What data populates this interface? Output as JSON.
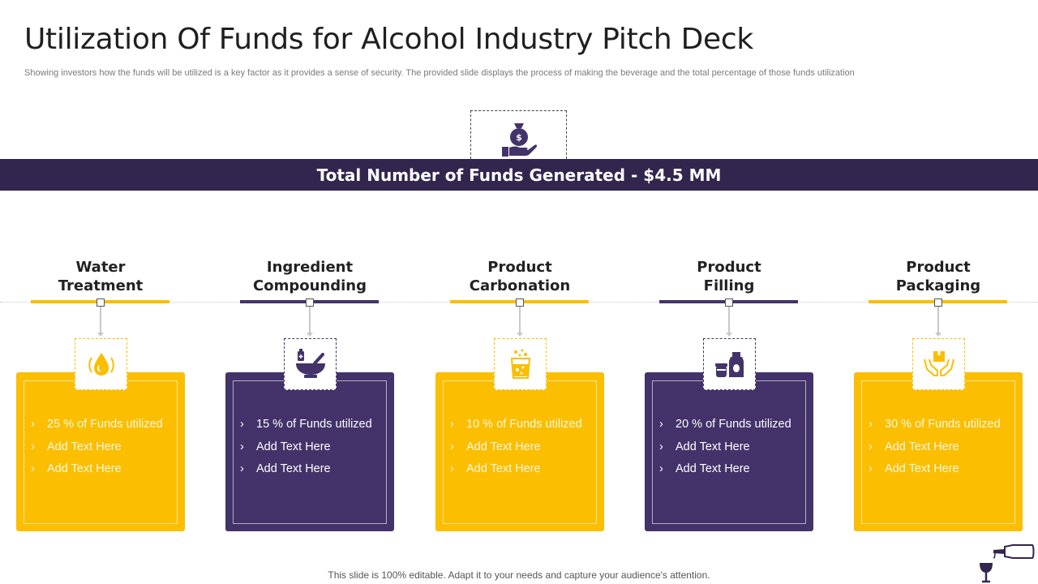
{
  "title": "Utilization Of Funds for Alcohol Industry Pitch Deck",
  "subtitle": "Showing investors how the funds will be utilized is a key factor as it provides a sense of security. The provided slide displays the process of making the beverage and the total percentage of those funds utilization",
  "banner": "Total Number of Funds Generated  - $4.5 MM",
  "colors": {
    "yellow": "#fbbe00",
    "purple": "#43336a",
    "banner": "#32264f"
  },
  "columns": [
    {
      "title_line1": "Water",
      "title_line2": "Treatment",
      "icon": "water-drop-icon",
      "items": [
        "25 % of Funds utilized",
        "Add Text Here",
        "Add Text Here"
      ]
    },
    {
      "title_line1": "Ingredient",
      "title_line2": "Compounding",
      "icon": "mortar-pestle-icon",
      "items": [
        "15 % of Funds utilized",
        "Add Text Here",
        "Add Text Here"
      ]
    },
    {
      "title_line1": "Product",
      "title_line2": "Carbonation",
      "icon": "fizzy-glass-icon",
      "items": [
        "10 % of Funds utilized",
        "Add Text Here",
        "Add Text Here"
      ]
    },
    {
      "title_line1": "Product",
      "title_line2": "Filling",
      "icon": "containers-icon",
      "items": [
        "20 % of Funds utilized",
        "Add Text Here",
        "Add Text Here"
      ]
    },
    {
      "title_line1": "Product",
      "title_line2": "Packaging",
      "icon": "hands-box-icon",
      "items": [
        "30 % of Funds utilized",
        "Add Text Here",
        "Add Text Here"
      ]
    }
  ],
  "chevron": "›",
  "footer": "This slide is 100% editable. Adapt it to your needs and capture your audience's attention."
}
